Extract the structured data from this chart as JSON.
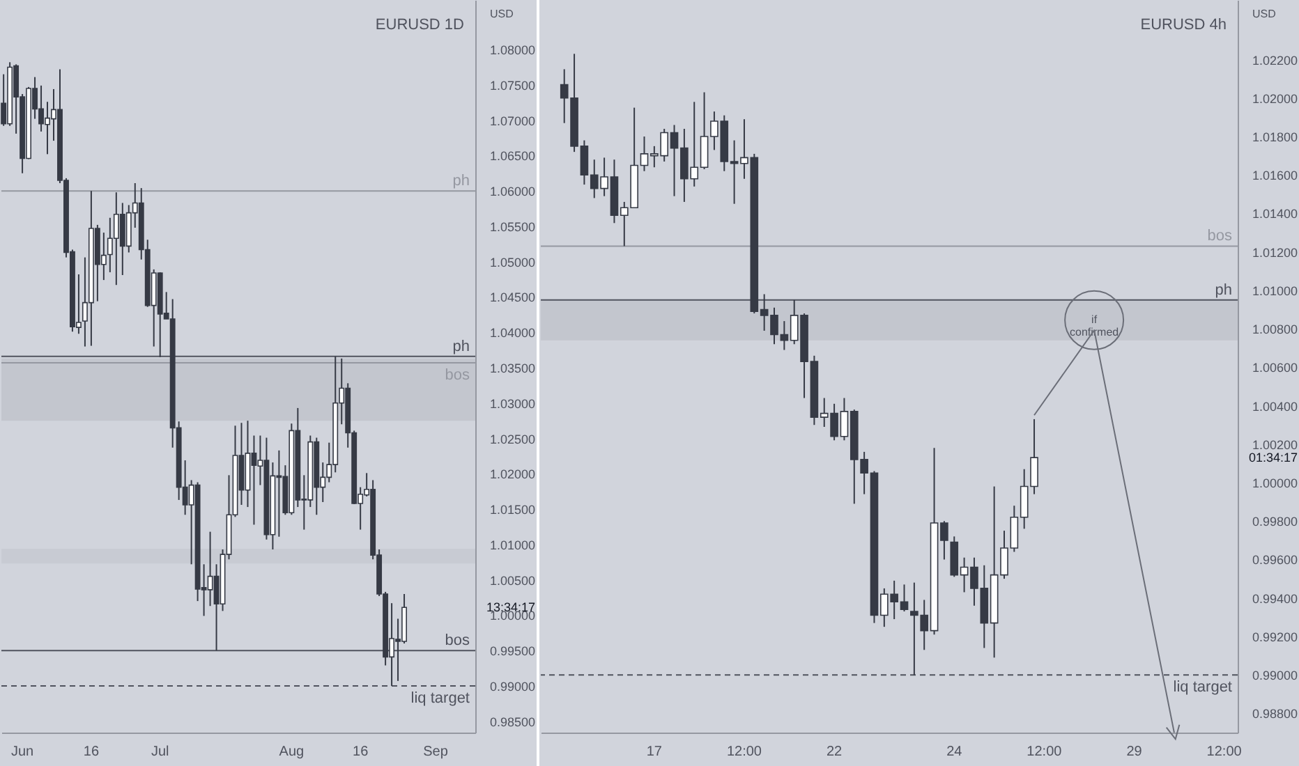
{
  "chart_data": [
    {
      "type": "candlestick",
      "title": "EURUSD 1D",
      "ylabel": "USD",
      "categories": [
        null,
        null,
        null,
        "Jun",
        null,
        null,
        null,
        null,
        null,
        null,
        null,
        null,
        null,
        null,
        "16",
        null,
        null,
        null,
        null,
        null,
        null,
        null,
        null,
        null,
        null,
        "Jul",
        null,
        null,
        null,
        null,
        null,
        null,
        null,
        null,
        null,
        null,
        null,
        null,
        null,
        null,
        null,
        null,
        null,
        null,
        null,
        null,
        "Aug",
        null,
        null,
        null,
        null,
        null,
        null,
        null,
        null,
        null,
        null,
        "16",
        null,
        null,
        null,
        null,
        null,
        null,
        null,
        null,
        null,
        null,
        null,
        "Sep",
        null,
        null,
        null,
        null,
        null,
        null
      ],
      "ohlc": [
        [
          1.0724,
          1.0765,
          1.0692,
          1.0695
        ],
        [
          1.0695,
          1.0782,
          1.0692,
          1.0775
        ],
        [
          1.0777,
          1.0779,
          1.0681,
          1.0733
        ],
        [
          1.0733,
          1.0737,
          1.0625,
          1.0646
        ],
        [
          1.0646,
          1.0747,
          1.0645,
          1.0745
        ],
        [
          1.0745,
          1.0761,
          1.0702,
          1.0716
        ],
        [
          1.0716,
          1.0749,
          1.0684,
          1.0695
        ],
        [
          1.0694,
          1.0726,
          1.0652,
          1.0703
        ],
        [
          1.0702,
          1.0744,
          1.0671,
          1.0715
        ],
        [
          1.0715,
          1.0772,
          1.0611,
          1.0615
        ],
        [
          1.0615,
          1.0618,
          1.0506,
          1.0513
        ],
        [
          1.0514,
          1.0517,
          1.0401,
          1.0408
        ],
        [
          1.0407,
          1.0482,
          1.0398,
          1.0414
        ],
        [
          1.0416,
          1.0506,
          1.038,
          1.0442
        ],
        [
          1.0442,
          1.06,
          1.0381,
          1.0547
        ],
        [
          1.0547,
          1.0552,
          1.0444,
          1.0496
        ],
        [
          1.0496,
          1.0541,
          1.0474,
          1.0509
        ],
        [
          1.051,
          1.0562,
          1.0485,
          1.0533
        ],
        [
          1.0533,
          1.0598,
          1.0467,
          1.0567
        ],
        [
          1.0567,
          1.0583,
          1.0481,
          1.0522
        ],
        [
          1.0522,
          1.058,
          1.0513,
          1.0569
        ],
        [
          1.0569,
          1.0611,
          1.0548,
          1.0583
        ],
        [
          1.0583,
          1.0604,
          1.0503,
          1.0517
        ],
        [
          1.0517,
          1.0531,
          1.0436,
          1.0438
        ],
        [
          1.0438,
          1.0489,
          1.038,
          1.0484
        ],
        [
          1.0484,
          1.0485,
          1.0365,
          1.0426
        ],
        [
          1.0427,
          1.0457,
          1.0419,
          1.0419
        ],
        [
          1.0419,
          1.0447,
          1.0237,
          1.0265
        ],
        [
          1.0265,
          1.0274,
          1.0163,
          1.0181
        ],
        [
          1.0181,
          1.0219,
          1.0142,
          1.0156
        ],
        [
          1.0156,
          1.0191,
          1.0072,
          1.0184
        ],
        [
          1.0184,
          1.0188,
          1.002,
          1.0037
        ],
        [
          1.0039,
          1.0072,
          0.9999,
          1.0036
        ],
        [
          1.0036,
          1.0118,
          1.0013,
          1.0055
        ],
        [
          1.0055,
          1.0072,
          0.995,
          1.0016
        ],
        [
          1.0016,
          1.0093,
          1.0006,
          1.0086
        ],
        [
          1.0086,
          1.0198,
          1.0079,
          1.0142
        ],
        [
          1.0142,
          1.0268,
          1.0139,
          1.0226
        ],
        [
          1.0226,
          1.0272,
          1.0156,
          1.0177
        ],
        [
          1.0177,
          1.0275,
          1.0153,
          1.0229
        ],
        [
          1.0229,
          1.0254,
          1.0128,
          1.0212
        ],
        [
          1.0211,
          1.0254,
          1.0184,
          1.0219
        ],
        [
          1.0219,
          1.0251,
          1.0107,
          1.0114
        ],
        [
          1.0114,
          1.0216,
          1.0093,
          1.0197
        ],
        [
          1.0197,
          1.0233,
          1.0111,
          1.0195
        ],
        [
          1.0196,
          1.0212,
          1.0142,
          1.0145
        ],
        [
          1.0145,
          1.0271,
          1.0142,
          1.0261
        ],
        [
          1.0261,
          1.0293,
          1.0153,
          1.0163
        ],
        [
          1.0164,
          1.0198,
          1.0121,
          1.0163
        ],
        [
          1.0163,
          1.0254,
          1.0153,
          1.0245
        ],
        [
          1.0245,
          1.0251,
          1.0142,
          1.0181
        ],
        [
          1.0181,
          1.0216,
          1.016,
          1.0195
        ],
        [
          1.0195,
          1.0244,
          1.0188,
          1.0213
        ],
        [
          1.0213,
          1.0366,
          1.0202,
          1.03
        ],
        [
          1.03,
          1.0363,
          1.027,
          1.0321
        ],
        [
          1.0321,
          1.0328,
          1.0237,
          1.0258
        ],
        [
          1.0258,
          1.0261,
          1.0157,
          1.0158
        ],
        [
          1.0158,
          1.0181,
          1.0121,
          1.0171
        ],
        [
          1.017,
          1.0201,
          1.0168,
          1.0178
        ],
        [
          1.0178,
          1.0191,
          1.0079,
          1.0085
        ],
        [
          1.0085,
          1.0093,
          1.0027,
          1.003
        ],
        [
          1.003,
          1.0033,
          0.9929,
          0.9941
        ],
        [
          0.9941,
          1.0017,
          0.99,
          0.9967
        ],
        [
          0.9966,
          0.9995,
          0.9907,
          0.9963
        ],
        [
          0.9963,
          1.003,
          0.996,
          1.0011
        ],
        null,
        null,
        null,
        null,
        null,
        null,
        null,
        null,
        null,
        null,
        null
      ],
      "colors": [
        "#363a45",
        "#ffffff",
        "#363a45",
        "#363a45",
        "#ffffff",
        "#363a45",
        "#363a45",
        "#ffffff",
        "#ffffff",
        "#363a45",
        "#363a45",
        "#363a45",
        "#ffffff",
        "#ffffff",
        "#ffffff",
        "#363a45",
        "#ffffff",
        "#ffffff",
        "#ffffff",
        "#363a45",
        "#ffffff",
        "#ffffff",
        "#363a45",
        "#363a45",
        "#ffffff",
        "#363a45",
        "#363a45",
        "#363a45",
        "#363a45",
        "#363a45",
        "#ffffff",
        "#363a45",
        "#363a45",
        "#ffffff",
        "#363a45",
        "#ffffff",
        "#ffffff",
        "#ffffff",
        "#363a45",
        "#ffffff",
        "#363a45",
        "#ffffff",
        "#363a45",
        "#ffffff",
        "#363a45",
        "#363a45",
        "#ffffff",
        "#363a45",
        "#363a45",
        "#ffffff",
        "#363a45",
        "#ffffff",
        "#ffffff",
        "#ffffff",
        "#ffffff",
        "#363a45",
        "#363a45",
        "#ffffff",
        "#ffffff",
        "#363a45",
        "#363a45",
        "#363a45",
        "#ffffff",
        "#363a45",
        "#ffffff",
        null,
        null,
        null,
        null,
        null,
        null,
        null,
        null,
        null,
        null,
        null
      ],
      "ylim": [
        0.9834,
        1.087
      ],
      "yticks": [
        {
          "value": 0.985,
          "label": "0.98500"
        },
        {
          "value": 0.99,
          "label": "0.99000"
        },
        {
          "value": 0.995,
          "label": "0.99500"
        },
        {
          "value": 1.0,
          "label": "1.00000"
        },
        {
          "value": 1.005,
          "label": "1.00500"
        },
        {
          "value": 1.01,
          "label": "1.01000"
        },
        {
          "value": 1.015,
          "label": "1.01500"
        },
        {
          "value": 1.02,
          "label": "1.02000"
        },
        {
          "value": 1.025,
          "label": "1.02500"
        },
        {
          "value": 1.03,
          "label": "1.03000"
        },
        {
          "value": 1.035,
          "label": "1.03500"
        },
        {
          "value": 1.04,
          "label": "1.04000"
        },
        {
          "value": 1.045,
          "label": "1.04500"
        },
        {
          "value": 1.05,
          "label": "1.05000"
        },
        {
          "value": 1.055,
          "label": "1.05500"
        },
        {
          "value": 1.06,
          "label": "1.06000"
        },
        {
          "value": 1.065,
          "label": "1.06500"
        },
        {
          "value": 1.07,
          "label": "1.07000"
        },
        {
          "value": 1.075,
          "label": "1.07500"
        },
        {
          "value": 1.08,
          "label": "1.08000"
        }
      ],
      "ref_lines": [
        {
          "axis": "y",
          "value": 1.06,
          "label": "ph",
          "color": "#9598a1"
        },
        {
          "axis": "y",
          "value": 1.0357,
          "label": "bos",
          "color": "#9598a1"
        },
        {
          "axis": "y",
          "value": 1.0366,
          "label": "ph",
          "color": "#50535e"
        },
        {
          "axis": "y",
          "value": 0.99,
          "label": "liq target",
          "color": "#50535e",
          "line_style": "dashed"
        },
        {
          "axis": "y",
          "value": 0.995,
          "label": "bos",
          "color": "#50535e"
        }
      ],
      "bands": [
        {
          "axis": "y",
          "from": 1.0275,
          "to": 1.0363,
          "color": "#c3c6ce"
        },
        {
          "axis": "y",
          "from": 1.0073,
          "to": 1.0094,
          "color": "#c8cbd3"
        }
      ],
      "annotations": [
        "13:34:17"
      ]
    },
    {
      "type": "candlestick",
      "title": "EURUSD 4h",
      "ylabel": "USD",
      "categories": [
        null,
        null,
        null,
        null,
        null,
        null,
        null,
        null,
        null,
        null,
        null,
        "17",
        null,
        null,
        null,
        null,
        null,
        null,
        null,
        null,
        "12:00",
        null,
        null,
        null,
        null,
        null,
        null,
        null,
        null,
        "22",
        null,
        null,
        null,
        null,
        null,
        null,
        null,
        null,
        null,
        null,
        null,
        "24",
        null,
        null,
        null,
        null,
        null,
        null,
        null,
        null,
        "12:00",
        null,
        null,
        null,
        null,
        null,
        null,
        null,
        null,
        "29",
        null,
        null,
        null,
        null,
        null,
        null,
        null,
        null,
        "12:00",
        null
      ],
      "ohlc": [
        null,
        null,
        [
          1.0207,
          1.0215,
          1.0187,
          1.02
        ],
        [
          1.02,
          1.0223,
          1.0172,
          1.0175
        ],
        [
          1.0175,
          1.0178,
          1.0155,
          1.016
        ],
        [
          1.016,
          1.0168,
          1.0148,
          1.0153
        ],
        [
          1.0153,
          1.0169,
          1.0149,
          1.0159
        ],
        [
          1.0159,
          1.0168,
          1.0135,
          1.0139
        ],
        [
          1.0139,
          1.0146,
          1.0123,
          1.0143
        ],
        [
          1.0143,
          1.0195,
          1.0143,
          1.0165
        ],
        [
          1.0165,
          1.018,
          1.0162,
          1.0171
        ],
        [
          1.017,
          1.0175,
          1.0164,
          1.0171
        ],
        [
          1.017,
          1.0184,
          1.0167,
          1.0182
        ],
        [
          1.0182,
          1.0186,
          1.0149,
          1.0174
        ],
        [
          1.0174,
          1.0184,
          1.0146,
          1.0158
        ],
        [
          1.0158,
          1.0198,
          1.0154,
          1.0164
        ],
        [
          1.0164,
          1.0203,
          1.0163,
          1.018
        ],
        [
          1.018,
          1.0193,
          1.0173,
          1.0188
        ],
        [
          1.0188,
          1.0191,
          1.0162,
          1.0167
        ],
        [
          1.0167,
          1.0178,
          1.0145,
          1.0166
        ],
        [
          1.0166,
          1.0189,
          1.0158,
          1.0169
        ],
        [
          1.0169,
          1.0171,
          1.0088,
          1.0089
        ],
        [
          1.009,
          1.0098,
          1.0079,
          1.0087
        ],
        [
          1.0087,
          1.0091,
          1.0072,
          1.0077
        ],
        [
          1.0077,
          1.0084,
          1.0069,
          1.0074
        ],
        [
          1.0074,
          1.0095,
          1.0072,
          1.0087
        ],
        [
          1.0087,
          1.0088,
          1.0044,
          1.0063
        ],
        [
          1.0063,
          1.0066,
          1.003,
          1.0034
        ],
        [
          1.0034,
          1.0044,
          1.0029,
          1.0036
        ],
        [
          1.0036,
          1.0041,
          1.0022,
          1.0024
        ],
        [
          1.0024,
          1.0044,
          1.0022,
          1.0037
        ],
        [
          1.0037,
          1.0038,
          0.9989,
          1.0012
        ],
        [
          1.0012,
          1.0016,
          0.9994,
          1.0005
        ],
        [
          1.0005,
          1.0006,
          0.9927,
          0.9931
        ],
        [
          0.9931,
          0.9945,
          0.9925,
          0.9942
        ],
        [
          0.9942,
          0.9949,
          0.9929,
          0.9938
        ],
        [
          0.9938,
          0.9947,
          0.9933,
          0.9934
        ],
        [
          0.9933,
          0.9948,
          0.99,
          0.9931
        ],
        [
          0.9931,
          0.9939,
          0.9913,
          0.9923
        ],
        [
          0.9923,
          1.0018,
          0.9921,
          0.9979
        ],
        [
          0.9979,
          0.998,
          0.996,
          0.997
        ],
        [
          0.9969,
          0.9972,
          0.9951,
          0.9952
        ],
        [
          0.9952,
          0.9961,
          0.9943,
          0.9956
        ],
        [
          0.9956,
          0.9961,
          0.9936,
          0.9945
        ],
        [
          0.9945,
          0.9957,
          0.9914,
          0.9927
        ],
        [
          0.9927,
          0.9998,
          0.9909,
          0.9952
        ],
        [
          0.9952,
          0.9975,
          0.995,
          0.9966
        ],
        [
          0.9966,
          0.9988,
          0.9964,
          0.9982
        ],
        [
          0.9982,
          1.0007,
          0.9976,
          0.9998
        ],
        [
          0.9998,
          1.0033,
          0.9994,
          1.0013
        ],
        null,
        null,
        null,
        null,
        null,
        null,
        null,
        null,
        null,
        null,
        null,
        null,
        null,
        null,
        null,
        null,
        null,
        null,
        null,
        null
      ],
      "colors": [
        null,
        null,
        "#363a45",
        "#363a45",
        "#363a45",
        "#363a45",
        "#ffffff",
        "#363a45",
        "#ffffff",
        "#ffffff",
        "#ffffff",
        "#ffffff",
        "#ffffff",
        "#363a45",
        "#363a45",
        "#ffffff",
        "#ffffff",
        "#ffffff",
        "#363a45",
        "#363a45",
        "#ffffff",
        "#363a45",
        "#363a45",
        "#363a45",
        "#363a45",
        "#ffffff",
        "#363a45",
        "#363a45",
        "#ffffff",
        "#363a45",
        "#ffffff",
        "#363a45",
        "#363a45",
        "#363a45",
        "#ffffff",
        "#363a45",
        "#363a45",
        "#363a45",
        "#363a45",
        "#ffffff",
        "#363a45",
        "#363a45",
        "#ffffff",
        "#363a45",
        "#363a45",
        "#ffffff",
        "#ffffff",
        "#ffffff",
        "#ffffff",
        "#ffffff",
        null,
        null,
        null,
        null,
        null,
        null,
        null,
        null,
        null,
        null,
        null,
        null,
        null,
        null,
        null,
        null,
        null,
        null,
        null,
        null
      ],
      "ylim": [
        0.987,
        1.0251
      ],
      "yticks": [
        {
          "value": 0.988,
          "label": "0.98800"
        },
        {
          "value": 0.99,
          "label": "0.99000"
        },
        {
          "value": 0.992,
          "label": "0.99200"
        },
        {
          "value": 0.994,
          "label": "0.99400"
        },
        {
          "value": 0.996,
          "label": "0.99600"
        },
        {
          "value": 0.998,
          "label": "0.99800"
        },
        {
          "value": 1.0,
          "label": "1.00000"
        },
        {
          "value": 1.002,
          "label": "1.00200"
        },
        {
          "value": 1.004,
          "label": "1.00400"
        },
        {
          "value": 1.006,
          "label": "1.00600"
        },
        {
          "value": 1.008,
          "label": "1.00800"
        },
        {
          "value": 1.01,
          "label": "1.01000"
        },
        {
          "value": 1.012,
          "label": "1.01200"
        },
        {
          "value": 1.014,
          "label": "1.01400"
        },
        {
          "value": 1.016,
          "label": "1.01600"
        },
        {
          "value": 1.018,
          "label": "1.01800"
        },
        {
          "value": 1.02,
          "label": "1.02000"
        },
        {
          "value": 1.022,
          "label": "1.02200"
        }
      ],
      "ref_lines": [
        {
          "axis": "y",
          "value": 1.0123,
          "label": "bos",
          "color": "#9598a1"
        },
        {
          "axis": "y",
          "value": 0.99,
          "label": "liq target",
          "color": "#50535e",
          "line_style": "dashed"
        },
        {
          "axis": "y",
          "value": 1.0095,
          "label": "ph",
          "color": "#50535e"
        }
      ],
      "bands": [
        {
          "axis": "y",
          "from": 1.0074,
          "to": 1.0095,
          "color": "#c3c6ce"
        }
      ],
      "annotations": [
        "01:34:17",
        "if confirmed"
      ]
    }
  ]
}
